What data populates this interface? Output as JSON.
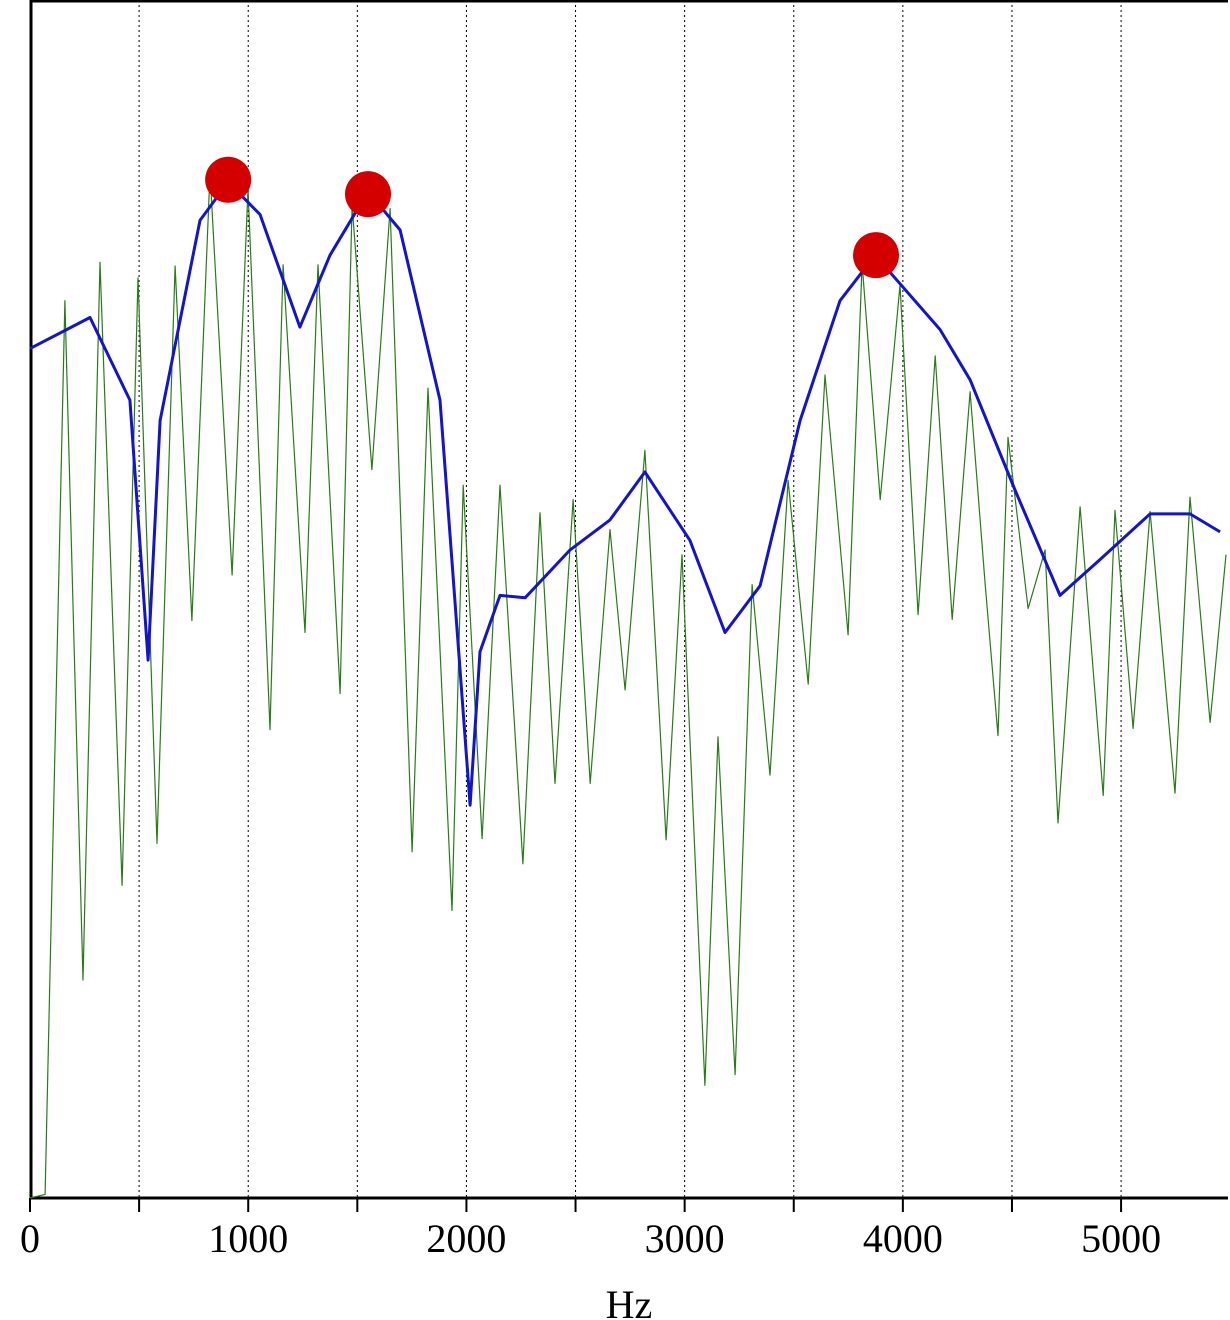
{
  "chart_data": {
    "type": "line",
    "xlabel": "Hz",
    "xlim": [
      0,
      5490
    ],
    "ylim": [
      0,
      100
    ],
    "xticks": [
      0,
      1000,
      2000,
      3000,
      4000,
      5000
    ],
    "minor_xticks": [
      500,
      1500,
      2500,
      3500,
      4500
    ],
    "grid": true,
    "series": [
      {
        "mark": "line",
        "color": "#2a7a1a",
        "width": 1.2,
        "x": [
          0,
          69,
          160,
          243,
          321,
          422,
          495,
          582,
          665,
          742,
          825,
          926,
          999,
          1100,
          1160,
          1260,
          1320,
          1421,
          1476,
          1567,
          1650,
          1751,
          1824,
          1934,
          1985,
          2072,
          2154,
          2259,
          2337,
          2406,
          2489,
          2567,
          2658,
          2727,
          2818,
          2915,
          2988,
          3093,
          3153,
          3231,
          3309,
          3391,
          3474,
          3566,
          3643,
          3749,
          3813,
          3896,
          3987,
          4070,
          4148,
          4226,
          4308,
          4377,
          4436,
          4482,
          4574,
          4652,
          4711,
          4812,
          4918,
          4972,
          5055,
          5133,
          5247,
          5316,
          5408,
          5481
        ],
        "values": [
          0,
          0.3,
          74.9,
          18.2,
          78.1,
          26.1,
          76.8,
          29.6,
          77.8,
          48.2,
          85.6,
          52.0,
          84.2,
          39.1,
          77.9,
          47.2,
          77.9,
          42.1,
          82.9,
          60.8,
          82.6,
          28.9,
          67.6,
          24.0,
          59.5,
          30.0,
          59.5,
          27.9,
          57.2,
          34.6,
          58.3,
          34.6,
          55.8,
          42.4,
          62.4,
          29.9,
          53.7,
          9.4,
          38.5,
          10.3,
          51.2,
          35.3,
          59.9,
          42.9,
          68.7,
          47.0,
          78.0,
          58.3,
          76.2,
          48.7,
          70.3,
          48.3,
          67.3,
          51.3,
          38.6,
          63.5,
          49.2,
          54.1,
          31.3,
          57.7,
          33.6,
          57.4,
          39.2,
          57.3,
          33.8,
          58.5,
          39.7,
          53.7
        ]
      },
      {
        "mark": "line",
        "color": "#1414c8",
        "width": 3,
        "x": [
          0,
          275,
          458,
          541,
          596,
          779,
          908,
          1054,
          1237,
          1375,
          1549,
          1696,
          1879,
          2017,
          2062,
          2154,
          2269,
          2475,
          2658,
          2818,
          3024,
          3185,
          3346,
          3529,
          3712,
          3873,
          4170,
          4308,
          4514,
          4720,
          4904,
          5133,
          5316,
          5454
        ],
        "values": [
          70.9,
          73.5,
          66.6,
          44.9,
          64.9,
          81.6,
          84.8,
          82.1,
          72.7,
          78.7,
          84.0,
          80.8,
          66.6,
          32.8,
          45.6,
          50.3,
          50.1,
          54.1,
          56.6,
          60.6,
          54.9,
          47.2,
          51.1,
          64.9,
          74.9,
          78.7,
          72.5,
          68.3,
          59.1,
          50.3,
          53.3,
          57.1,
          57.1,
          55.6
        ]
      },
      {
        "mark": "point",
        "color": "#d40000",
        "size": 23,
        "x": [
          908,
          1549,
          3877
        ],
        "values": [
          85.0,
          83.8,
          78.7
        ]
      }
    ]
  }
}
